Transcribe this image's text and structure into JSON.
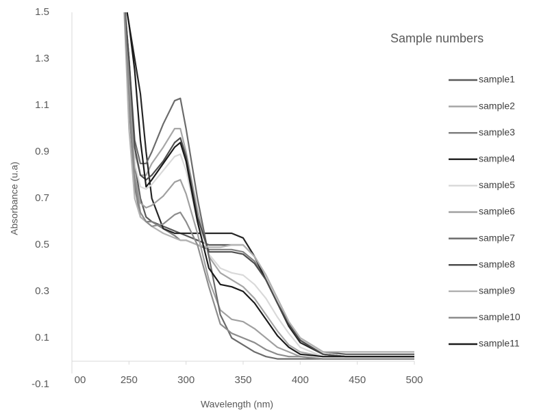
{
  "chart_data": {
    "type": "line",
    "x_label": "Wavelength (nm)",
    "y_label": "Absorbance (u.a)",
    "legend_title": "Sample numbers",
    "x": [
      245,
      250,
      255,
      260,
      265,
      270,
      280,
      290,
      295,
      300,
      310,
      320,
      330,
      340,
      350,
      360,
      370,
      380,
      390,
      400,
      420,
      440,
      460,
      500
    ],
    "xlim": [
      200,
      500
    ],
    "xticks": [
      {
        "value": 200,
        "label": "00"
      },
      250,
      300,
      350,
      400,
      450,
      500
    ],
    "ylim": [
      -0.1,
      1.5
    ],
    "yticks": [
      1.5,
      1.3,
      1.1,
      0.9,
      0.7,
      0.5,
      0.3,
      0.1,
      -0.1
    ],
    "legend": "right",
    "series": [
      {
        "name": "sample1",
        "color": "#595959",
        "values": [
          1.6,
          1.2,
          0.85,
          0.7,
          0.62,
          0.6,
          0.58,
          0.56,
          0.55,
          0.54,
          0.52,
          0.5,
          0.5,
          0.5,
          0.5,
          0.45,
          0.37,
          0.27,
          0.17,
          0.1,
          0.04,
          0.03,
          0.03,
          0.03
        ]
      },
      {
        "name": "sample2",
        "color": "#a6a6a6",
        "values": [
          1.6,
          1.3,
          0.9,
          0.8,
          0.8,
          0.85,
          0.92,
          1.0,
          1.0,
          0.9,
          0.65,
          0.45,
          0.38,
          0.35,
          0.32,
          0.27,
          0.2,
          0.13,
          0.07,
          0.04,
          0.02,
          0.02,
          0.02,
          0.02
        ]
      },
      {
        "name": "sample3",
        "color": "#7f7f7f",
        "values": [
          1.6,
          1.1,
          0.75,
          0.62,
          0.6,
          0.6,
          0.57,
          0.54,
          0.52,
          0.52,
          0.5,
          0.48,
          0.48,
          0.48,
          0.47,
          0.43,
          0.35,
          0.25,
          0.16,
          0.09,
          0.03,
          0.02,
          0.02,
          0.02
        ]
      },
      {
        "name": "sample4",
        "color": "#262626",
        "values": [
          1.6,
          1.45,
          1.3,
          1.15,
          0.9,
          0.7,
          0.57,
          0.55,
          0.55,
          0.55,
          0.55,
          0.55,
          0.55,
          0.55,
          0.53,
          0.45,
          0.35,
          0.25,
          0.15,
          0.08,
          0.03,
          0.02,
          0.02,
          0.02
        ]
      },
      {
        "name": "sample5",
        "color": "#d9d9d9",
        "values": [
          1.6,
          1.25,
          0.85,
          0.75,
          0.74,
          0.76,
          0.82,
          0.88,
          0.89,
          0.82,
          0.6,
          0.46,
          0.4,
          0.38,
          0.37,
          0.33,
          0.27,
          0.19,
          0.12,
          0.06,
          0.02,
          0.02,
          0.02,
          0.02
        ]
      },
      {
        "name": "sample6",
        "color": "#a0a0a0",
        "values": [
          1.6,
          1.2,
          0.8,
          0.68,
          0.66,
          0.67,
          0.71,
          0.77,
          0.78,
          0.72,
          0.55,
          0.35,
          0.22,
          0.18,
          0.17,
          0.14,
          0.1,
          0.06,
          0.04,
          0.02,
          0.01,
          0.01,
          0.01,
          0.01
        ]
      },
      {
        "name": "sample7",
        "color": "#6b6b6b",
        "values": [
          1.6,
          1.3,
          0.95,
          0.85,
          0.85,
          0.9,
          1.02,
          1.12,
          1.13,
          1.0,
          0.7,
          0.45,
          0.2,
          0.1,
          0.07,
          0.04,
          0.02,
          0.01,
          0.01,
          0.01,
          0.01,
          0.01,
          0.01,
          0.01
        ]
      },
      {
        "name": "sample8",
        "color": "#4d4d4d",
        "values": [
          1.6,
          1.3,
          0.92,
          0.8,
          0.78,
          0.8,
          0.86,
          0.94,
          0.96,
          0.88,
          0.62,
          0.47,
          0.47,
          0.47,
          0.46,
          0.42,
          0.35,
          0.25,
          0.16,
          0.09,
          0.03,
          0.02,
          0.02,
          0.02
        ]
      },
      {
        "name": "sample9",
        "color": "#b3b3b3",
        "values": [
          1.6,
          1.0,
          0.7,
          0.62,
          0.6,
          0.58,
          0.55,
          0.53,
          0.52,
          0.52,
          0.5,
          0.49,
          0.49,
          0.5,
          0.5,
          0.45,
          0.37,
          0.27,
          0.17,
          0.1,
          0.04,
          0.04,
          0.04,
          0.04
        ]
      },
      {
        "name": "sample10",
        "color": "#8c8c8c",
        "values": [
          1.6,
          1.15,
          0.78,
          0.64,
          0.6,
          0.58,
          0.59,
          0.63,
          0.64,
          0.6,
          0.5,
          0.32,
          0.16,
          0.12,
          0.1,
          0.08,
          0.05,
          0.03,
          0.02,
          0.02,
          0.01,
          0.01,
          0.01,
          0.01
        ]
      },
      {
        "name": "sample11",
        "color": "#1a1a1a",
        "values": [
          1.6,
          1.45,
          1.25,
          0.95,
          0.75,
          0.78,
          0.85,
          0.92,
          0.94,
          0.86,
          0.6,
          0.4,
          0.33,
          0.32,
          0.3,
          0.25,
          0.18,
          0.11,
          0.06,
          0.03,
          0.02,
          0.02,
          0.02,
          0.02
        ]
      }
    ]
  }
}
